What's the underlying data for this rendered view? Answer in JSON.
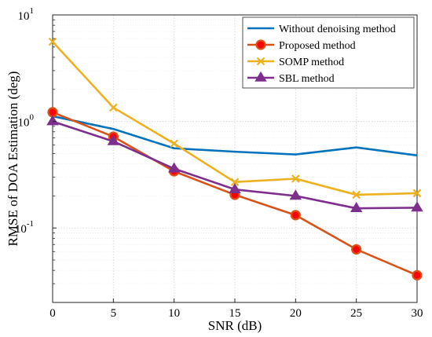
{
  "chart_data": {
    "type": "line",
    "xlabel": "SNR (dB)",
    "ylabel": "RMSE of DOA Estimation (deg)",
    "x": [
      0,
      5,
      10,
      15,
      20,
      25,
      30
    ],
    "xticks": [
      "0",
      "5",
      "10",
      "15",
      "20",
      "25",
      "30"
    ],
    "xlim": [
      0,
      30
    ],
    "yscale": "log",
    "ylim": [
      0.02,
      10
    ],
    "yticks": [
      {
        "base": "10",
        "exp": "-1",
        "value": 0.1
      },
      {
        "base": "10",
        "exp": "0",
        "value": 1
      },
      {
        "base": "10",
        "exp": "1",
        "value": 10
      }
    ],
    "grid": true,
    "legend_position": "top-right",
    "series": [
      {
        "name": "Without denoising method",
        "color": "#0072BD",
        "marker": "none",
        "values": [
          1.12,
          0.85,
          0.56,
          0.52,
          0.49,
          0.57,
          0.48
        ]
      },
      {
        "name": "Proposed method",
        "color": "#D95319",
        "marker": "circle",
        "marker_fill": "#FF0000",
        "values": [
          1.22,
          0.72,
          0.34,
          0.205,
          0.132,
          0.063,
          0.036
        ]
      },
      {
        "name": "SOMP method",
        "color": "#EDB120",
        "marker": "x",
        "values": [
          5.6,
          1.35,
          0.62,
          0.27,
          0.29,
          0.205,
          0.212
        ]
      },
      {
        "name": "SBL method",
        "color": "#7E2F8E",
        "marker": "triangle",
        "values": [
          1.0,
          0.65,
          0.36,
          0.23,
          0.2,
          0.153,
          0.155
        ]
      }
    ]
  }
}
